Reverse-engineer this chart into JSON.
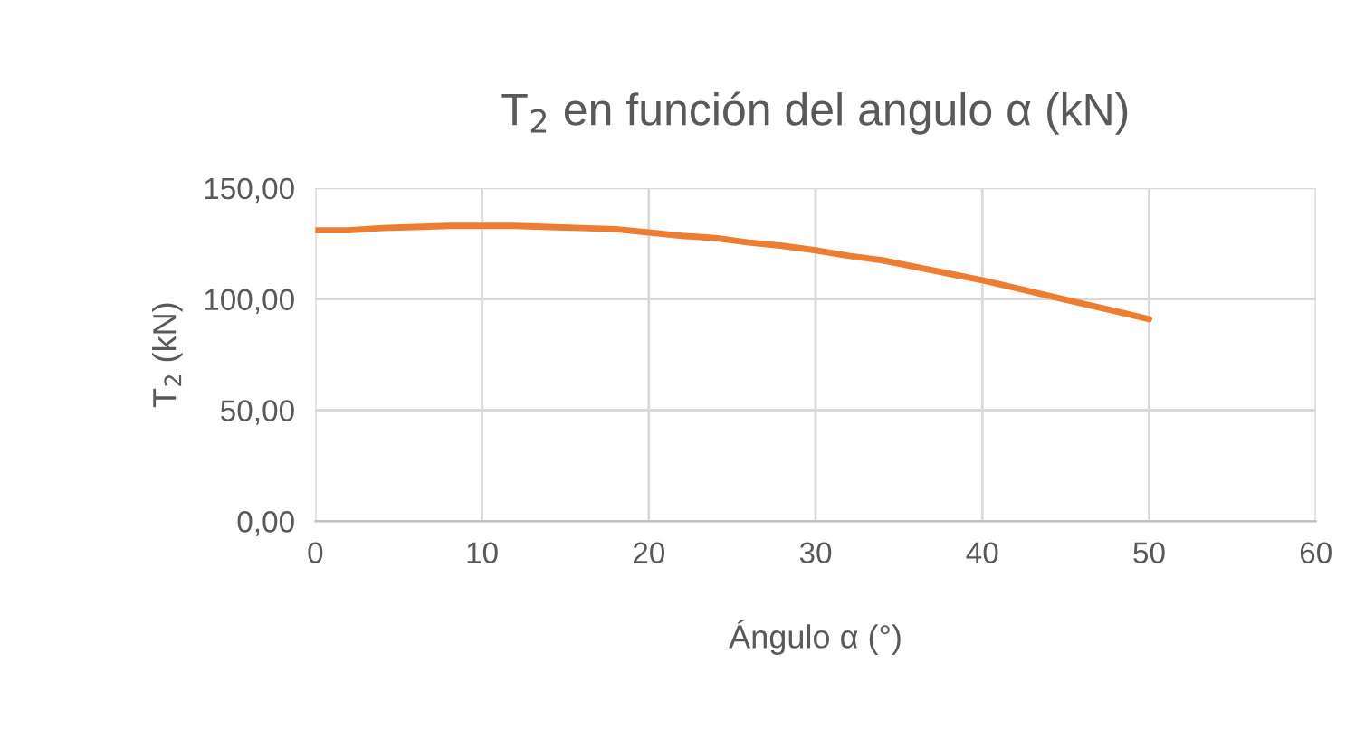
{
  "chart_data": {
    "type": "line",
    "title": "T$_{2}$ en función del angulo α (kN)",
    "xlabel": "Ángulo α (°)",
    "ylabel": "T$_{2}$ (kN)",
    "x": [
      0,
      2,
      4,
      6,
      8,
      10,
      12,
      14,
      16,
      18,
      20,
      22,
      24,
      26,
      28,
      30,
      32,
      34,
      36,
      38,
      40,
      42,
      44,
      46,
      48,
      50
    ],
    "series": [
      {
        "color": "#ed7d31",
        "values": [
          131,
          131,
          132,
          132.5,
          133,
          133,
          133,
          132.5,
          132,
          131.5,
          130,
          128.5,
          127.5,
          125.5,
          124,
          122,
          119.5,
          117.5,
          114.5,
          111.5,
          108.5,
          105,
          101.5,
          98,
          94.5,
          91
        ]
      }
    ],
    "xlim": [
      0,
      60
    ],
    "xticks": [
      0,
      10,
      20,
      30,
      40,
      50,
      60
    ],
    "ylim": [
      0,
      150
    ],
    "yticks": [
      {
        "value": 0,
        "label": "0,00"
      },
      {
        "value": 50,
        "label": "50,00"
      },
      {
        "value": 100,
        "label": "100,00"
      },
      {
        "value": 150,
        "label": "150,00"
      }
    ],
    "grid": true,
    "marker": "none",
    "line_style": "solid"
  }
}
